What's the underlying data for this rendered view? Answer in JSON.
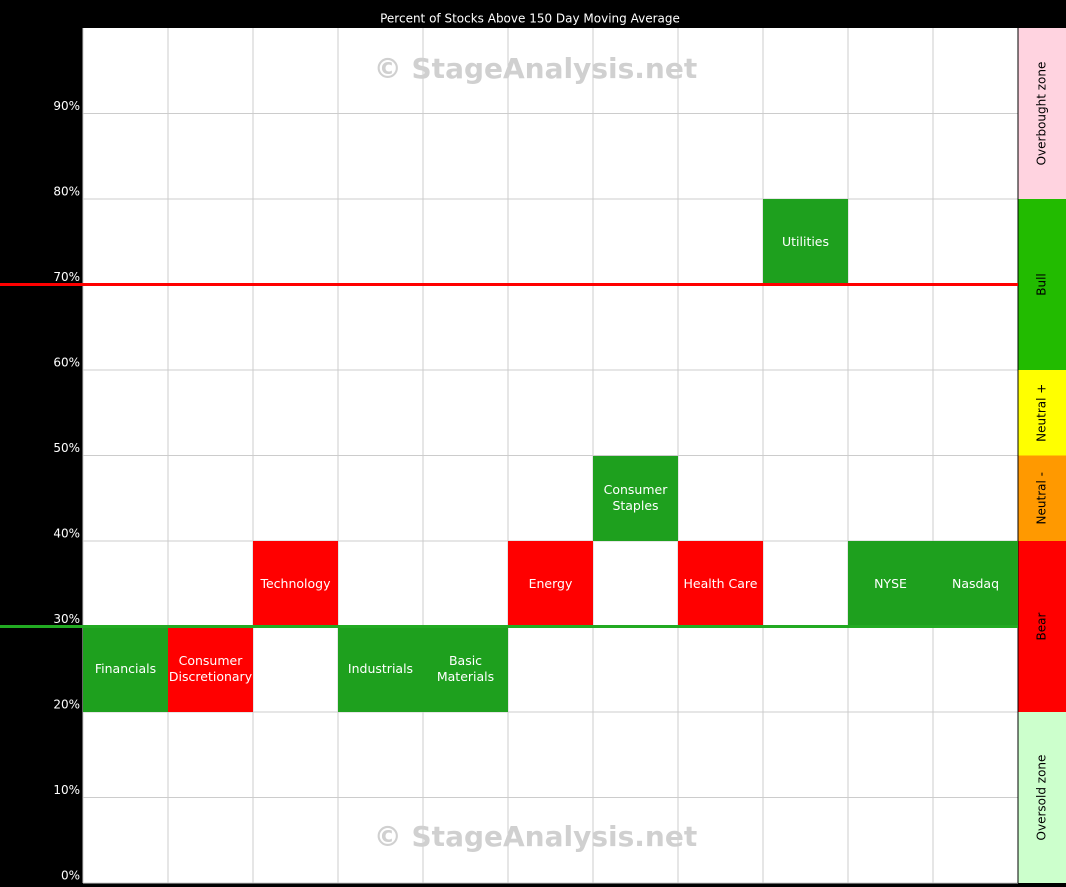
{
  "chart_data": {
    "type": "sector-grid",
    "title": "Percent of Stocks Above 150 Day Moving Average",
    "watermarks": [
      "© StageAnalysis.net",
      "© StageAnalysis.net"
    ],
    "categories": [
      "Financials",
      "Consumer Discretionary",
      "Technology",
      "Industrials",
      "Basic Materials",
      "Energy",
      "Consumer Staples",
      "Health Care",
      "Utilities",
      "NYSE",
      "Nasdaq"
    ],
    "low": [
      20,
      20,
      30,
      20,
      20,
      30,
      40,
      30,
      70,
      30,
      30
    ],
    "high": [
      30,
      30,
      40,
      30,
      30,
      40,
      50,
      40,
      80,
      40,
      40
    ],
    "colors": [
      "#1ea01e",
      "#ff0000",
      "#ff0000",
      "#1ea01e",
      "#1ea01e",
      "#ff0000",
      "#1ea01e",
      "#ff0000",
      "#1ea01e",
      "#1ea01e",
      "#1ea01e"
    ],
    "ylim": [
      0,
      100
    ],
    "yticks": [
      {
        "value": 0,
        "label": "0%"
      },
      {
        "value": 10,
        "label": "10%"
      },
      {
        "value": 20,
        "label": "20%"
      },
      {
        "value": 30,
        "label": "30%"
      },
      {
        "value": 40,
        "label": "40%"
      },
      {
        "value": 50,
        "label": "50%"
      },
      {
        "value": 60,
        "label": "60%"
      },
      {
        "value": 70,
        "label": "70%"
      },
      {
        "value": 80,
        "label": "80%"
      },
      {
        "value": 90,
        "label": "90%"
      }
    ],
    "grid": true,
    "reference_lines": [
      {
        "value": 70,
        "color": "#ff0000"
      },
      {
        "value": 30,
        "color": "#22aa22"
      }
    ],
    "zones": [
      {
        "name": "Overbought zone",
        "from": 80,
        "to": 100,
        "color": "#ffd3e0"
      },
      {
        "name": "Bull",
        "from": 60,
        "to": 80,
        "color": "#22bb00"
      },
      {
        "name": "Neutral +",
        "from": 50,
        "to": 60,
        "color": "#ffff00"
      },
      {
        "name": "Neutral -",
        "from": 40,
        "to": 50,
        "color": "#ff9900"
      },
      {
        "name": "Bear",
        "from": 20,
        "to": 40,
        "color": "#ff0000"
      },
      {
        "name": "Oversold zone",
        "from": 0,
        "to": 20,
        "color": "#ccffcc"
      }
    ]
  }
}
